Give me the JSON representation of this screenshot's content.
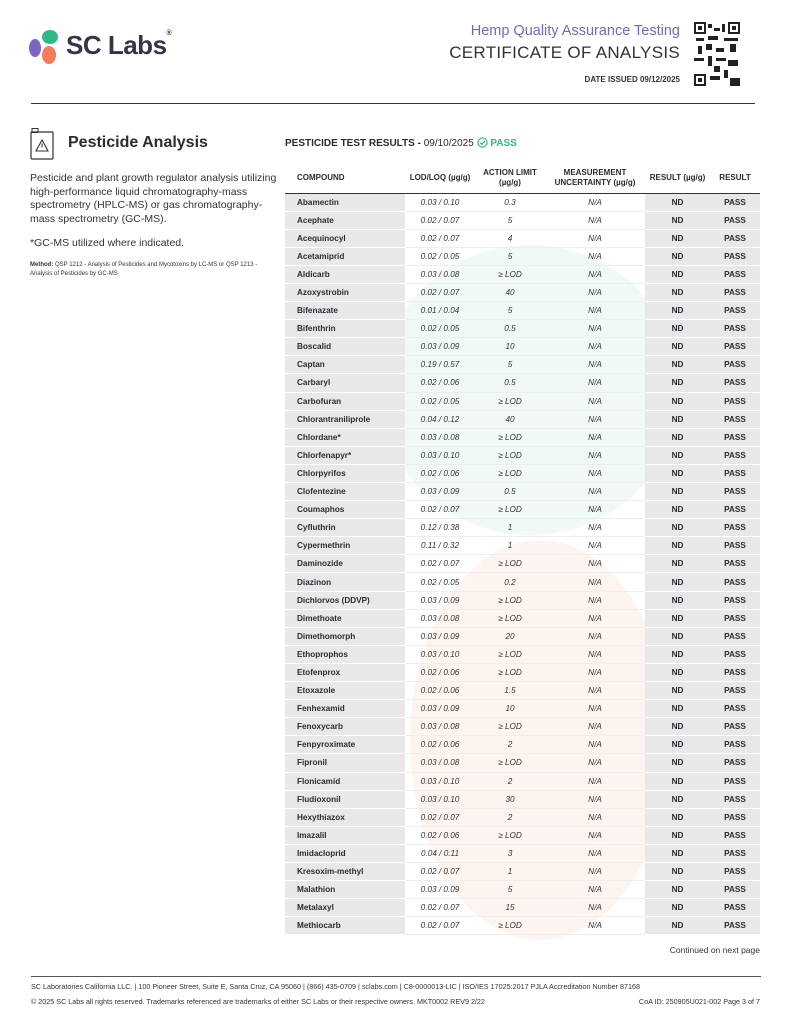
{
  "header": {
    "brand": "SC Labs",
    "subtitle": "Hemp Quality Assurance Testing",
    "title": "CERTIFICATE OF ANALYSIS",
    "date_issued": "DATE ISSUED 09/12/2025",
    "colors": {
      "purple": "#7b64c8",
      "green": "#2fb88a",
      "orange": "#f47b5c"
    }
  },
  "section": {
    "title": "Pesticide Analysis",
    "icon": "warning-jug-icon",
    "description": "Pesticide and plant growth regulator analysis utilizing high-performance liquid chromatography-mass spectrometry (HPLC-MS) or gas chromatography-mass spectrometry (GC-MS).",
    "gcms_note": "*GC-MS utilized where indicated.",
    "method_label": "Method:",
    "method_text": " QSP 1212 - Analysis of Pesticides and Mycotoxins by LC-MS or QSP 1213 - Analysis of Pesticides by GC-MS"
  },
  "results": {
    "heading": "PESTICIDE TEST RESULTS - ",
    "date": "09/10/2025",
    "status": "PASS",
    "columns": [
      "COMPOUND",
      "LOD/LOQ (µg/g)",
      "ACTION LIMIT (µg/g)",
      "MEASUREMENT UNCERTAINTY (µg/g)",
      "RESULT (µg/g)",
      "RESULT"
    ],
    "rows": [
      [
        "Abamectin",
        "0.03 / 0.10",
        "0.3"
      ],
      [
        "Acephate",
        "0.02 / 0.07",
        "5"
      ],
      [
        "Acequinocyl",
        "0.02 / 0.07",
        "4"
      ],
      [
        "Acetamiprid",
        "0.02 / 0.05",
        "5"
      ],
      [
        "Aldicarb",
        "0.03 / 0.08",
        "≥ LOD"
      ],
      [
        "Azoxystrobin",
        "0.02 / 0.07",
        "40"
      ],
      [
        "Bifenazate",
        "0.01 / 0.04",
        "5"
      ],
      [
        "Bifenthrin",
        "0.02 / 0.05",
        "0.5"
      ],
      [
        "Boscalid",
        "0.03 / 0.09",
        "10"
      ],
      [
        "Captan",
        "0.19 / 0.57",
        "5"
      ],
      [
        "Carbaryl",
        "0.02 / 0.06",
        "0.5"
      ],
      [
        "Carbofuran",
        "0.02 / 0.05",
        "≥ LOD"
      ],
      [
        "Chlorantraniliprole",
        "0.04 / 0.12",
        "40"
      ],
      [
        "Chlordane*",
        "0.03 / 0.08",
        "≥ LOD"
      ],
      [
        "Chlorfenapyr*",
        "0.03 / 0.10",
        "≥ LOD"
      ],
      [
        "Chlorpyrifos",
        "0.02 / 0.06",
        "≥ LOD"
      ],
      [
        "Clofentezine",
        "0.03 / 0.09",
        "0.5"
      ],
      [
        "Coumaphos",
        "0.02 / 0.07",
        "≥ LOD"
      ],
      [
        "Cyfluthrin",
        "0.12 / 0.38",
        "1"
      ],
      [
        "Cypermethrin",
        "0.11 / 0.32",
        "1"
      ],
      [
        "Daminozide",
        "0.02 / 0.07",
        "≥ LOD"
      ],
      [
        "Diazinon",
        "0.02 / 0.05",
        "0.2"
      ],
      [
        "Dichlorvos (DDVP)",
        "0.03 / 0.09",
        "≥ LOD"
      ],
      [
        "Dimethoate",
        "0.03 / 0.08",
        "≥ LOD"
      ],
      [
        "Dimethomorph",
        "0.03 / 0.09",
        "20"
      ],
      [
        "Ethoprophos",
        "0.03 / 0.10",
        "≥ LOD"
      ],
      [
        "Etofenprox",
        "0.02 / 0.06",
        "≥ LOD"
      ],
      [
        "Etoxazole",
        "0.02 / 0.06",
        "1.5"
      ],
      [
        "Fenhexamid",
        "0.03 / 0.09",
        "10"
      ],
      [
        "Fenoxycarb",
        "0.03 / 0.08",
        "≥ LOD"
      ],
      [
        "Fenpyroximate",
        "0.02 / 0.06",
        "2"
      ],
      [
        "Fipronil",
        "0.03 / 0.08",
        "≥ LOD"
      ],
      [
        "Flonicamid",
        "0.03 / 0.10",
        "2"
      ],
      [
        "Fludioxonil",
        "0.03 / 0.10",
        "30"
      ],
      [
        "Hexythiazox",
        "0.02 / 0.07",
        "2"
      ],
      [
        "Imazalil",
        "0.02 / 0.06",
        "≥ LOD"
      ],
      [
        "Imidacloprid",
        "0.04 / 0.11",
        "3"
      ],
      [
        "Kresoxim-methyl",
        "0.02 / 0.07",
        "1"
      ],
      [
        "Malathion",
        "0.03 / 0.09",
        "5"
      ],
      [
        "Metalaxyl",
        "0.02 / 0.07",
        "15"
      ],
      [
        "Methiocarb",
        "0.02 / 0.07",
        "≥ LOD"
      ]
    ],
    "uncertainty": "N/A",
    "result_value": "ND",
    "result_status": "PASS"
  },
  "continued": "Continued on next page",
  "footer": {
    "line1": "SC Laboratories California LLC. | 100 Pioneer Street, Suite E, Santa Cruz, CA 95060 | (866) 435-0709 | sclabs.com | C8-0000013-LIC | ISO/IES 17025:2017 PJLA Accreditation Number 87168",
    "line2": "© 2025 SC Labs all rights reserved. Trademarks referenced are trademarks of either SC Labs or their respective owners. MKT0002 REV9 2/22",
    "coa_id": "CoA ID: 250905U021-002  Page 3 of 7"
  }
}
